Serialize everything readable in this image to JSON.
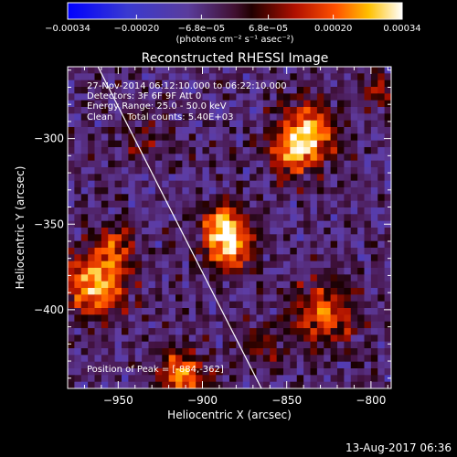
{
  "chart_data": {
    "type": "heatmap",
    "title": "Reconstructed RHESSI Image",
    "xlabel": "Heliocentric X (arcsec)",
    "ylabel": "Heliocentric Y (arcsec)",
    "xlim": [
      -980,
      -788
    ],
    "ylim": [
      -446,
      -258
    ],
    "x_ticks": [
      -950,
      -900,
      -850,
      -800
    ],
    "x_tick_labels": [
      "−950",
      "−900",
      "−850",
      "−800"
    ],
    "y_ticks": [
      -300,
      -350,
      -400
    ],
    "y_tick_labels": [
      "−300",
      "−350",
      "−400"
    ],
    "annotations": [
      "27-Nov-2014 06:12:10.000 to 06:22:10.000",
      "Detectors: 3F 6F 9F  Att 0",
      "Energy Range: 25.0 - 50.0 keV",
      "Clean     Total counts: 5.40E+03"
    ],
    "peak_label": "Position of Peak = [-884,-362]",
    "peak": [
      -884,
      -362
    ],
    "limb_line": [
      [
        -962,
        -258
      ],
      [
        -865,
        -446
      ]
    ],
    "sources": [
      {
        "x": -884,
        "y": -362,
        "amplitude": 1.0,
        "sigma": 10
      },
      {
        "x": -888,
        "y": -348,
        "amplitude": 0.55,
        "sigma": 8
      },
      {
        "x": -838,
        "y": -297,
        "amplitude": 0.85,
        "sigma": 12
      },
      {
        "x": -848,
        "y": -310,
        "amplitude": 0.55,
        "sigma": 9
      },
      {
        "x": -964,
        "y": -385,
        "amplitude": 0.9,
        "sigma": 13
      },
      {
        "x": -952,
        "y": -362,
        "amplitude": 0.5,
        "sigma": 8
      },
      {
        "x": -912,
        "y": -438,
        "amplitude": 0.75,
        "sigma": 10
      },
      {
        "x": -828,
        "y": -402,
        "amplitude": 0.65,
        "sigma": 13
      },
      {
        "x": -865,
        "y": -420,
        "amplitude": 0.35,
        "sigma": 9
      },
      {
        "x": -795,
        "y": -272,
        "amplitude": 0.5,
        "sigma": 6
      },
      {
        "x": -935,
        "y": -300,
        "amplitude": 0.25,
        "sigma": 10
      }
    ],
    "colorbar": {
      "min": -0.00034,
      "max": 0.00034,
      "ticks": [
        -0.00034,
        -0.0002,
        -6.8e-05,
        6.8e-05,
        0.0002,
        0.00034
      ],
      "tick_labels": [
        "−0.00034",
        "−0.00020",
        "−6.8e−05",
        "6.8e−05",
        "0.00020",
        "0.00034"
      ],
      "unit_label": "(photons cm⁻² s⁻¹ asec⁻²)"
    },
    "grid": false
  },
  "footer": {
    "timestamp": "13-Aug-2017 06:36"
  },
  "colors": {
    "background": "#000000",
    "text": "#ffffff",
    "limb": "#ffffff"
  }
}
